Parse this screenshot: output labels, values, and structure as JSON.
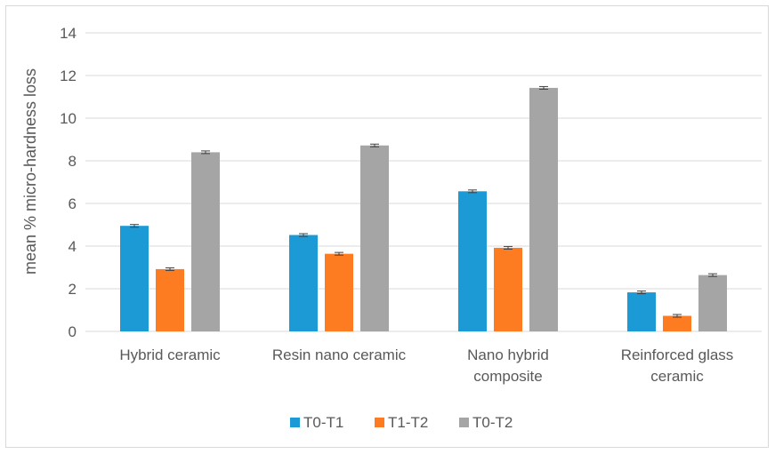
{
  "chart_data": {
    "type": "bar",
    "title": "",
    "xlabel": "",
    "ylabel": "mean % micro-hardness loss",
    "ylim": [
      0,
      14
    ],
    "yticks": [
      0,
      2,
      4,
      6,
      8,
      10,
      12,
      14
    ],
    "grid": true,
    "legend_position": "bottom",
    "categories": [
      [
        "Hybrid ceramic"
      ],
      [
        "Resin nano ceramic"
      ],
      [
        "Nano hybrid",
        "composite"
      ],
      [
        "Reinforced glass",
        "ceramic"
      ]
    ],
    "series": [
      {
        "name": "T0-T1",
        "color": "#1b9ad6",
        "values": [
          4.95,
          4.52,
          6.57,
          1.83
        ]
      },
      {
        "name": "T1-T2",
        "color": "#fe7c21",
        "values": [
          2.92,
          3.64,
          3.92,
          0.73
        ]
      },
      {
        "name": "T0-T2",
        "color": "#a5a5a5",
        "values": [
          8.4,
          8.72,
          11.42,
          2.64
        ]
      }
    ],
    "error_bars": "small"
  }
}
